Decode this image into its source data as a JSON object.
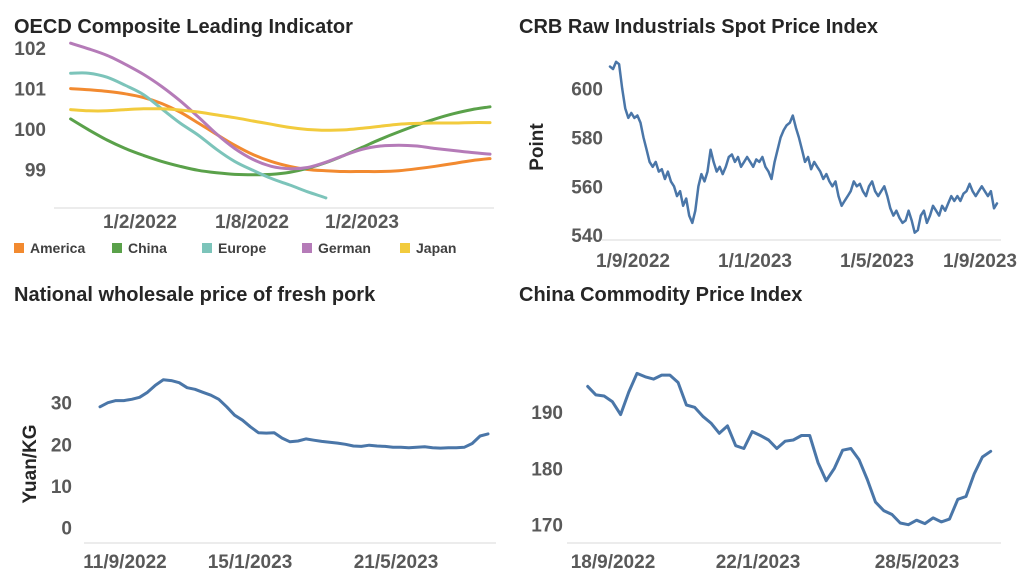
{
  "chart_data": [
    {
      "type": "line",
      "title": "OECD Composite Leading Indicator",
      "xlabel": "",
      "ylabel": "",
      "x_tick_labels": [
        "1/2/2022",
        "1/8/2022",
        "1/2/2023"
      ],
      "y_ticks": [
        99,
        100,
        101,
        102
      ],
      "ylim": [
        98,
        102.2
      ],
      "x": [
        "2021-09",
        "2021-10",
        "2021-11",
        "2021-12",
        "2022-01",
        "2022-02",
        "2022-03",
        "2022-04",
        "2022-05",
        "2022-06",
        "2022-07",
        "2022-08",
        "2022-09",
        "2022-10",
        "2022-11",
        "2022-12",
        "2023-01",
        "2023-02",
        "2023-03",
        "2023-04",
        "2023-05",
        "2023-06",
        "2023-07",
        "2023-08"
      ],
      "legend": "bottom",
      "grid": false,
      "series": [
        {
          "name": "America",
          "color": "#F28A30",
          "values": [
            101.0,
            100.97,
            100.93,
            100.87,
            100.78,
            100.63,
            100.42,
            100.15,
            99.87,
            99.6,
            99.37,
            99.2,
            99.08,
            99.0,
            98.97,
            98.95,
            98.95,
            98.95,
            98.97,
            99.02,
            99.08,
            99.15,
            99.22,
            99.27
          ]
        },
        {
          "name": "China",
          "color": "#5AA14A",
          "values": [
            100.25,
            99.98,
            99.73,
            99.52,
            99.35,
            99.2,
            99.08,
            98.98,
            98.92,
            98.88,
            98.87,
            98.88,
            98.93,
            99.03,
            99.17,
            99.35,
            99.55,
            99.75,
            99.93,
            100.1,
            100.25,
            100.38,
            100.48,
            100.55
          ]
        },
        {
          "name": "Europe",
          "color": "#7CC4BA",
          "values": [
            101.38,
            101.38,
            101.28,
            101.08,
            100.85,
            100.5,
            100.15,
            99.85,
            99.5,
            99.2,
            98.98,
            98.78,
            98.62,
            98.45,
            98.3,
            null,
            null,
            null,
            null,
            null,
            null,
            null,
            null,
            null
          ]
        },
        {
          "name": "German",
          "color": "#B57BB8",
          "values": [
            102.12,
            101.98,
            101.82,
            101.6,
            101.35,
            101.05,
            100.7,
            100.3,
            99.88,
            99.52,
            99.25,
            99.08,
            99.02,
            99.05,
            99.18,
            99.35,
            99.5,
            99.58,
            99.6,
            99.58,
            99.52,
            99.47,
            99.42,
            99.38
          ]
        },
        {
          "name": "Japan",
          "color": "#F2CB3D",
          "values": [
            100.48,
            100.45,
            100.45,
            100.48,
            100.5,
            100.5,
            100.47,
            100.42,
            100.35,
            100.28,
            100.2,
            100.12,
            100.04,
            99.99,
            99.97,
            99.98,
            100.02,
            100.07,
            100.12,
            100.14,
            100.15,
            100.15,
            100.16,
            100.16
          ]
        }
      ]
    },
    {
      "type": "line",
      "title": "CRB Raw Industrials Spot Price Index",
      "xlabel": "",
      "ylabel": "Point",
      "x_tick_labels": [
        "1/9/2022",
        "1/1/2023",
        "1/5/2023",
        "1/9/2023"
      ],
      "y_ticks": [
        540,
        560,
        580,
        600
      ],
      "ylim": [
        538,
        615
      ],
      "grid": false,
      "series": [
        {
          "name": "",
          "color": "#4A76A8",
          "values": [
            609,
            608,
            611,
            610,
            600,
            592,
            588,
            590,
            588,
            589,
            586,
            580,
            575,
            570,
            568,
            570,
            566,
            567,
            563,
            566,
            562,
            560,
            556,
            558,
            552,
            555,
            548,
            545,
            550,
            560,
            565,
            562,
            566,
            575,
            570,
            566,
            568,
            565,
            568,
            572,
            573,
            570,
            572,
            568,
            570,
            572,
            570,
            568,
            571,
            570,
            572,
            568,
            566,
            563,
            570,
            575,
            580,
            583,
            585,
            586,
            589,
            584,
            580,
            575,
            570,
            572,
            567,
            570,
            568,
            566,
            563,
            565,
            562,
            560,
            562,
            556,
            552,
            554,
            556,
            558,
            562,
            560,
            561,
            558,
            556,
            560,
            562,
            558,
            556,
            558,
            560,
            556,
            551,
            548,
            550,
            547,
            545,
            546,
            550,
            546,
            541,
            542,
            548,
            550,
            545,
            548,
            552,
            550,
            548,
            552,
            550,
            553,
            556,
            554,
            556,
            554,
            557,
            558,
            561,
            558,
            556,
            558,
            560,
            558,
            556,
            558,
            551,
            553
          ]
        }
      ]
    },
    {
      "type": "line",
      "title": "National wholesale price of fresh pork",
      "xlabel": "",
      "ylabel": "Yuan/KG",
      "x_tick_labels": [
        "11/9/2022",
        "15/1/2023",
        "21/5/2023"
      ],
      "y_ticks": [
        0,
        10,
        20,
        30
      ],
      "ylim": [
        -2,
        40
      ],
      "grid": false,
      "series": [
        {
          "name": "",
          "color": "#4A76A8",
          "values": [
            29.0,
            30.0,
            30.5,
            30.5,
            30.8,
            31.3,
            32.5,
            34.2,
            35.5,
            35.3,
            34.8,
            33.6,
            33.2,
            32.5,
            31.8,
            30.8,
            29.0,
            27.0,
            25.8,
            24.2,
            22.8,
            22.7,
            22.8,
            21.5,
            20.6,
            20.8,
            21.3,
            21.0,
            20.7,
            20.5,
            20.3,
            20.0,
            19.6,
            19.5,
            19.8,
            19.6,
            19.5,
            19.3,
            19.3,
            19.2,
            19.3,
            19.4,
            19.2,
            19.1,
            19.2,
            19.2,
            19.3,
            20.2,
            22.0,
            22.5
          ]
        }
      ]
    },
    {
      "type": "line",
      "title": "China Commodity Price Index",
      "xlabel": "",
      "ylabel": "",
      "x_tick_labels": [
        "18/9/2022",
        "22/1/2023",
        "28/5/2023"
      ],
      "y_ticks": [
        170,
        180,
        190
      ],
      "ylim": [
        168,
        199
      ],
      "grid": false,
      "series": [
        {
          "name": "",
          "color": "#4A76A8",
          "values": [
            194.5,
            193.0,
            192.8,
            191.8,
            189.5,
            193.5,
            196.8,
            196.2,
            195.8,
            196.5,
            196.5,
            195.2,
            191.2,
            190.8,
            189.2,
            188.0,
            186.2,
            187.5,
            184.0,
            183.5,
            186.5,
            185.8,
            185.0,
            183.5,
            184.8,
            185.0,
            185.8,
            185.8,
            181.0,
            177.8,
            180.0,
            183.2,
            183.5,
            181.5,
            178.0,
            174.0,
            172.5,
            171.8,
            170.3,
            170.0,
            170.8,
            170.2,
            171.2,
            170.5,
            171.0,
            174.5,
            175.0,
            179.0,
            182.0,
            183.0
          ]
        }
      ]
    }
  ]
}
